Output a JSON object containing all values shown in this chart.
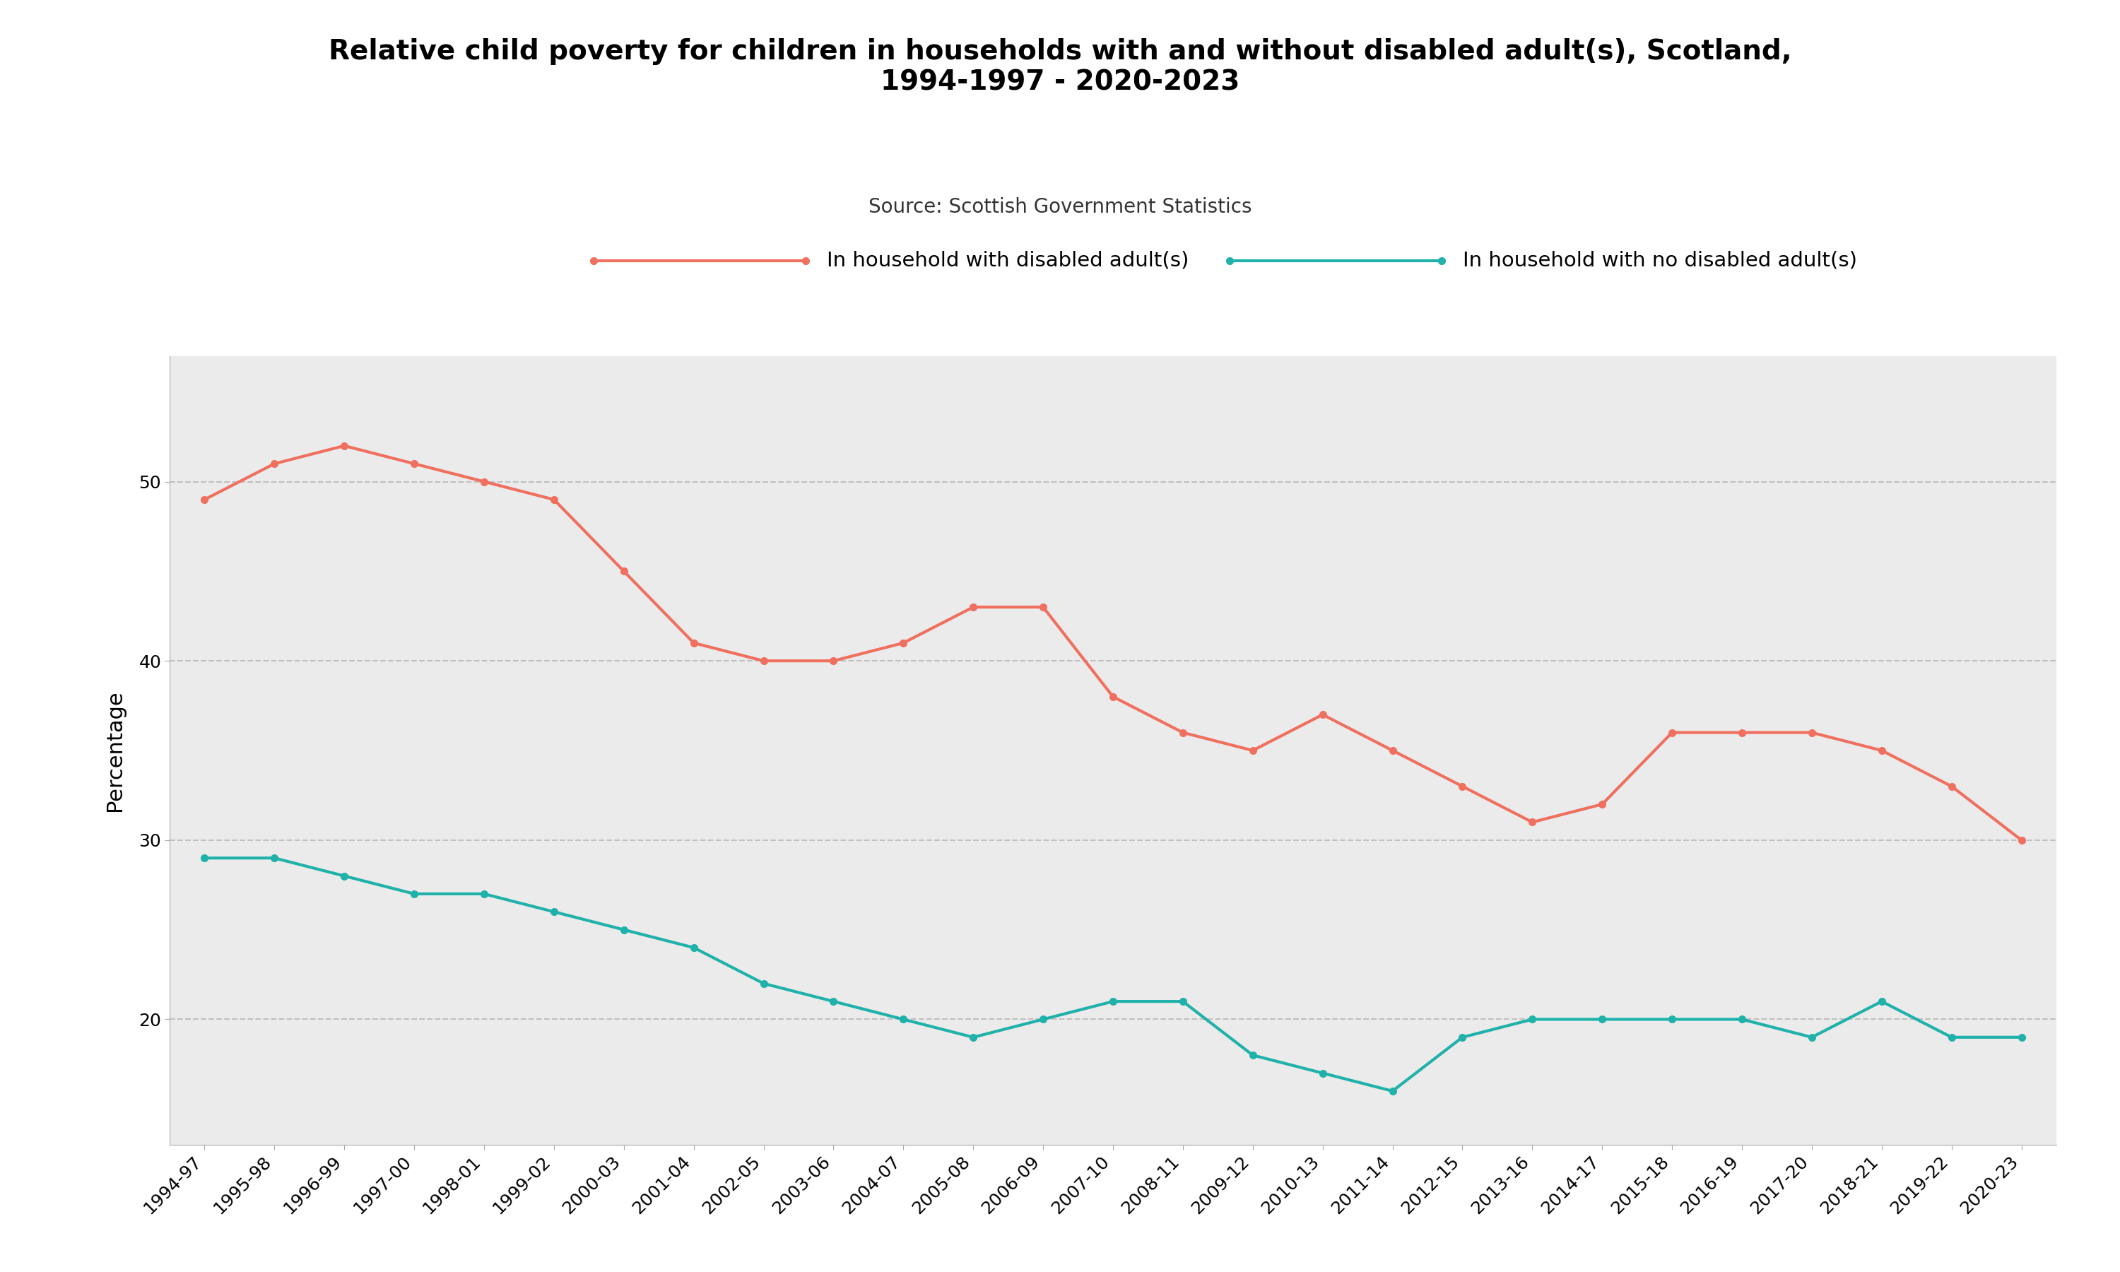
{
  "title": "Relative child poverty for children in households with and without disabled adult(s), Scotland,\n1994-1997 - 2020-2023",
  "source": "Source: Scottish Government Statistics",
  "ylabel": "Percentage",
  "background_color": "#ebebeb",
  "outer_background": "#ffffff",
  "x_labels": [
    "1994-97",
    "1995-98",
    "1996-99",
    "1997-00",
    "1998-01",
    "1999-02",
    "2000-03",
    "2001-04",
    "2002-05",
    "2003-06",
    "2004-07",
    "2005-08",
    "2006-09",
    "2007-10",
    "2008-11",
    "2009-12",
    "2010-13",
    "2011-14",
    "2012-15",
    "2013-16",
    "2014-17",
    "2015-18",
    "2016-19",
    "2017-20",
    "2018-21",
    "2019-22",
    "2020-23"
  ],
  "disabled_adults": [
    49,
    51,
    52,
    51,
    50,
    49,
    45,
    41,
    40,
    40,
    41,
    43,
    43,
    38,
    36,
    35,
    37,
    35,
    33,
    31,
    32,
    36,
    36,
    36,
    35,
    33,
    30
  ],
  "no_disabled_adults": [
    29,
    29,
    28,
    27,
    27,
    26,
    25,
    24,
    22,
    21,
    20,
    19,
    20,
    21,
    21,
    18,
    17,
    16,
    19,
    20,
    20,
    20,
    20,
    19,
    21,
    19,
    19
  ],
  "color_disabled": "#f07060",
  "color_no_disabled": "#20b2aa",
  "legend_disabled": "In household with disabled adult(s)",
  "legend_no_disabled": "In household with no disabled adult(s)",
  "ylim": [
    13,
    57
  ],
  "yticks": [
    20,
    30,
    40,
    50
  ],
  "grid_color": "#c0c0c0",
  "title_fontsize": 28,
  "source_fontsize": 20,
  "tick_fontsize": 18,
  "legend_fontsize": 21,
  "ylabel_fontsize": 22,
  "line_width": 3.0,
  "marker_size": 7
}
